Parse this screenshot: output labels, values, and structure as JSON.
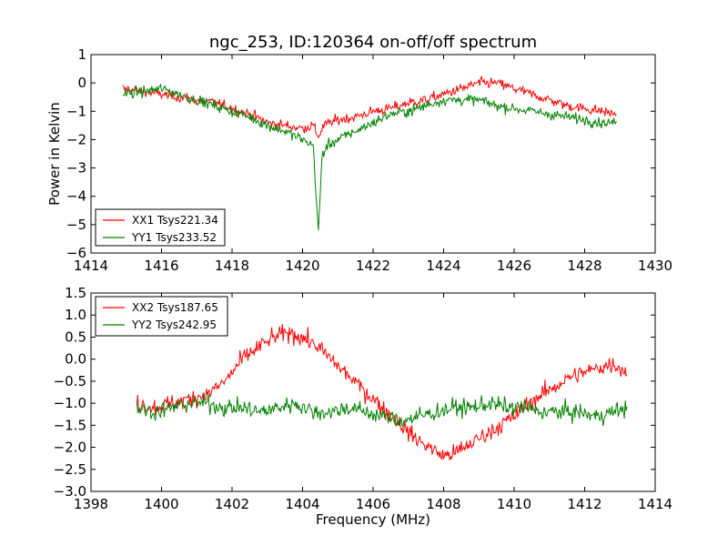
{
  "figure": {
    "title": "ngc_253, ID:120364 on-off/off spectrum"
  },
  "chart_data": [
    {
      "type": "line",
      "title": "ngc_253, ID:120364 on-off/off spectrum",
      "xlabel": "",
      "ylabel": "Power in Kelvin",
      "xlim": [
        1414,
        1430
      ],
      "ylim": [
        -6,
        1
      ],
      "xticks": [
        "1414",
        "1416",
        "1418",
        "1420",
        "1422",
        "1424",
        "1426",
        "1428",
        "1430"
      ],
      "yticks": [
        "1",
        "0",
        "−1",
        "−2",
        "−3",
        "−4",
        "−5",
        "−6"
      ],
      "legend": "lower-left",
      "grid": false,
      "series": [
        {
          "name": "XX1 Tsys221.34",
          "color": "#ff0000",
          "x": [
            1414.9,
            1415.5,
            1416,
            1416.5,
            1417,
            1417.5,
            1418,
            1418.5,
            1419,
            1419.5,
            1420,
            1420.3,
            1420.45,
            1420.6,
            1421,
            1421.5,
            1422,
            1422.5,
            1423,
            1423.5,
            1424,
            1424.5,
            1425,
            1425.5,
            1426,
            1426.5,
            1427,
            1427.5,
            1428,
            1428.5,
            1428.9
          ],
          "y": [
            -0.2,
            -0.3,
            -0.4,
            -0.5,
            -0.6,
            -0.7,
            -0.9,
            -1.1,
            -1.4,
            -1.5,
            -1.6,
            -1.5,
            -1.9,
            -1.5,
            -1.3,
            -1.2,
            -1.0,
            -0.9,
            -0.7,
            -0.6,
            -0.4,
            -0.2,
            0.0,
            0.0,
            -0.2,
            -0.4,
            -0.6,
            -0.8,
            -0.9,
            -1.0,
            -1.1
          ]
        },
        {
          "name": "YY1 Tsys233.52",
          "color": "#008000",
          "x": [
            1414.9,
            1415.5,
            1416,
            1416.5,
            1417,
            1417.5,
            1418,
            1418.5,
            1419,
            1419.5,
            1420,
            1420.3,
            1420.45,
            1420.55,
            1420.7,
            1421,
            1421.5,
            1422,
            1422.5,
            1423,
            1423.5,
            1424,
            1424.5,
            1425,
            1425.5,
            1426,
            1426.5,
            1427,
            1427.5,
            1428,
            1428.5,
            1428.9
          ],
          "y": [
            -0.4,
            -0.3,
            -0.2,
            -0.4,
            -0.6,
            -0.8,
            -1.0,
            -1.2,
            -1.5,
            -1.7,
            -2.0,
            -2.2,
            -5.3,
            -2.6,
            -2.2,
            -2.0,
            -1.7,
            -1.4,
            -1.1,
            -1.0,
            -0.8,
            -0.6,
            -0.6,
            -0.6,
            -0.8,
            -0.9,
            -1.0,
            -1.1,
            -1.2,
            -1.3,
            -1.4,
            -1.4
          ]
        }
      ]
    },
    {
      "type": "line",
      "title": "",
      "xlabel": "Frequency (MHz)",
      "ylabel": "",
      "xlim": [
        1398,
        1414
      ],
      "ylim": [
        -3.0,
        1.5
      ],
      "xticks": [
        "1398",
        "1400",
        "1402",
        "1404",
        "1406",
        "1408",
        "1410",
        "1412",
        "1414"
      ],
      "yticks": [
        "1.5",
        "1.0",
        "0.5",
        "0.0",
        "−0.5",
        "−1.0",
        "−1.5",
        "−2.0",
        "−2.5",
        "−3.0"
      ],
      "legend": "upper-left",
      "grid": false,
      "series": [
        {
          "name": "XX2 Tsys187.65",
          "color": "#ff0000",
          "x": [
            1399.3,
            1399.8,
            1400.3,
            1400.8,
            1401.3,
            1401.8,
            1402.3,
            1402.8,
            1403.2,
            1403.6,
            1404.0,
            1404.4,
            1404.8,
            1405.2,
            1405.6,
            1406.0,
            1406.4,
            1406.8,
            1407.2,
            1407.6,
            1408.0,
            1408.4,
            1408.8,
            1409.2,
            1409.6,
            1410.0,
            1410.4,
            1410.8,
            1411.2,
            1411.6,
            1412.0,
            1412.4,
            1412.8,
            1413.2
          ],
          "y": [
            -1.0,
            -1.1,
            -1.0,
            -0.9,
            -0.8,
            -0.5,
            0.0,
            0.3,
            0.5,
            0.6,
            0.5,
            0.3,
            0.0,
            -0.3,
            -0.6,
            -0.9,
            -1.2,
            -1.5,
            -1.8,
            -2.0,
            -2.2,
            -2.1,
            -1.9,
            -1.7,
            -1.5,
            -1.3,
            -1.0,
            -0.8,
            -0.6,
            -0.4,
            -0.3,
            -0.2,
            -0.1,
            -0.3
          ]
        },
        {
          "name": "YY2 Tsys242.95",
          "color": "#008000",
          "x": [
            1399.3,
            1399.8,
            1400.3,
            1400.8,
            1401.3,
            1401.8,
            1402.3,
            1402.8,
            1403.3,
            1403.8,
            1404.3,
            1404.8,
            1405.3,
            1405.8,
            1406.3,
            1406.8,
            1407.3,
            1407.8,
            1408.3,
            1408.8,
            1409.3,
            1409.8,
            1410.3,
            1410.8,
            1411.3,
            1411.8,
            1412.3,
            1412.8,
            1413.2
          ],
          "y": [
            -1.1,
            -1.2,
            -1.1,
            -1.0,
            -1.0,
            -1.1,
            -1.1,
            -1.2,
            -1.1,
            -1.0,
            -1.2,
            -1.2,
            -1.1,
            -1.2,
            -1.3,
            -1.4,
            -1.3,
            -1.2,
            -1.1,
            -1.1,
            -1.0,
            -1.1,
            -1.1,
            -1.2,
            -1.2,
            -1.2,
            -1.3,
            -1.2,
            -1.1
          ]
        }
      ]
    }
  ]
}
